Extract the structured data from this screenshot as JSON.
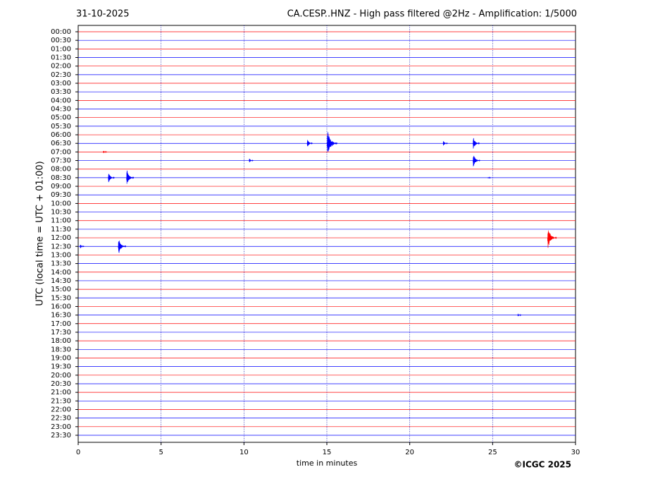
{
  "chart_data": {
    "type": "helicorder",
    "date": "31-10-2025",
    "title": "CA.CESP..HNZ - High pass filtered @2Hz - Amplification: 1/5000",
    "xlabel": "time in minutes",
    "ylabel": "UTC (local time = UTC + 01:00)",
    "copyright": "©ICGC 2025",
    "xlim": [
      0,
      30
    ],
    "xticks": [
      0,
      5,
      10,
      15,
      20,
      25,
      30
    ],
    "grid": true,
    "trace_colors": [
      "#ff0000",
      "#0000ff"
    ],
    "categories": [
      "00:00",
      "00:30",
      "01:00",
      "01:30",
      "02:00",
      "02:30",
      "03:00",
      "03:30",
      "04:00",
      "04:30",
      "05:00",
      "05:30",
      "06:00",
      "06:30",
      "07:00",
      "07:30",
      "08:00",
      "08:30",
      "09:00",
      "09:30",
      "10:00",
      "10:30",
      "11:00",
      "11:30",
      "12:00",
      "12:30",
      "13:00",
      "13:30",
      "14:00",
      "14:30",
      "15:00",
      "15:30",
      "16:00",
      "16:30",
      "17:00",
      "17:30",
      "18:00",
      "18:30",
      "19:00",
      "19:30",
      "20:00",
      "20:30",
      "21:00",
      "21:30",
      "22:00",
      "22:30",
      "23:00",
      "23:30"
    ],
    "events": [
      {
        "trace": "06:30",
        "x": 13.9,
        "amplitude": 0.6
      },
      {
        "trace": "06:30",
        "x": 15.1,
        "amplitude": 1.8
      },
      {
        "trace": "06:30",
        "x": 15.4,
        "amplitude": 0.4
      },
      {
        "trace": "06:30",
        "x": 22.1,
        "amplitude": 0.4
      },
      {
        "trace": "06:30",
        "x": 23.9,
        "amplitude": 0.9
      },
      {
        "trace": "07:00",
        "x": 1.6,
        "amplitude": 0.2
      },
      {
        "trace": "07:30",
        "x": 10.4,
        "amplitude": 0.3
      },
      {
        "trace": "07:30",
        "x": 23.9,
        "amplitude": 1.0
      },
      {
        "trace": "08:30",
        "x": 1.9,
        "amplitude": 0.8
      },
      {
        "trace": "08:30",
        "x": 3.0,
        "amplitude": 1.1
      },
      {
        "trace": "08:30",
        "x": 24.8,
        "amplitude": 0.1
      },
      {
        "trace": "12:00",
        "x": 28.4,
        "amplitude": 1.5
      },
      {
        "trace": "12:30",
        "x": 0.2,
        "amplitude": 0.3
      },
      {
        "trace": "12:30",
        "x": 2.5,
        "amplitude": 1.2
      },
      {
        "trace": "16:30",
        "x": 26.6,
        "amplitude": 0.2
      }
    ]
  }
}
